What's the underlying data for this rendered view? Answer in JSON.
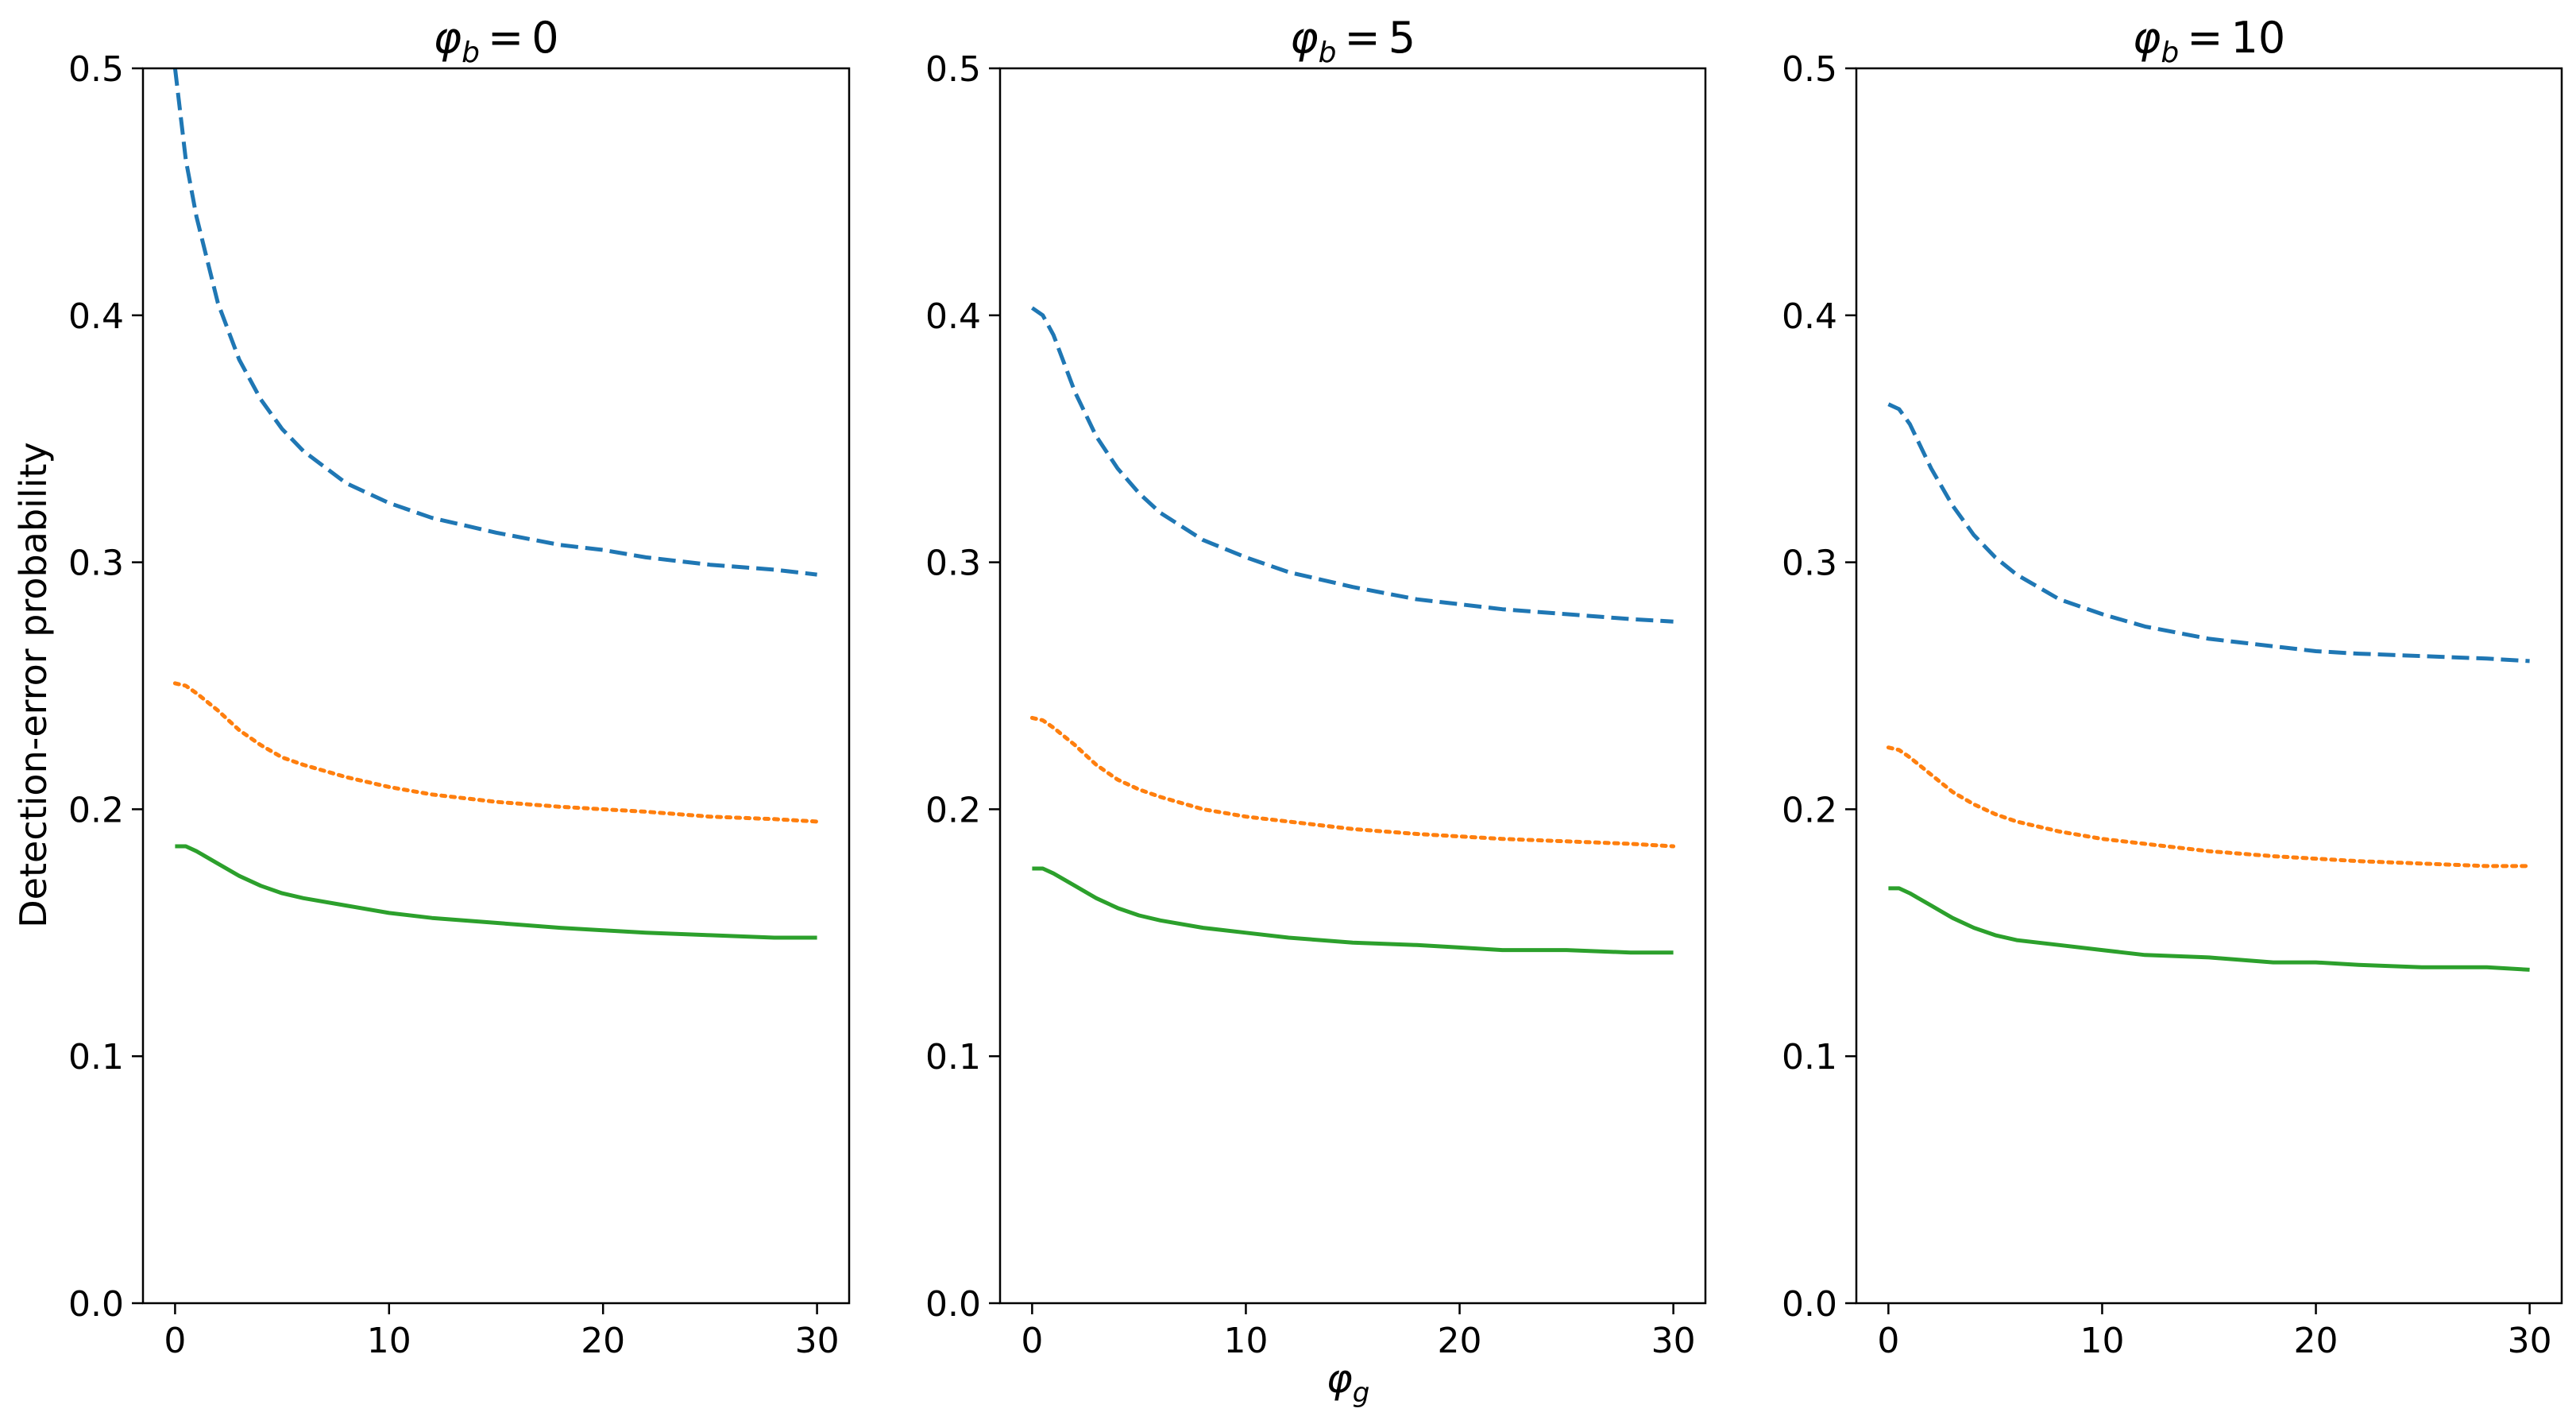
{
  "chart_data": {
    "type": "line",
    "layout": "1x3 panels, shared y range",
    "ylabel": "Detection-error probability",
    "xlabel_symbol": "φ",
    "xlabel_subscript": "g",
    "title_symbol": "φ",
    "title_subscript": "b",
    "title_equals": "=",
    "xlim": [
      -1.5,
      31.5
    ],
    "ylim": [
      0.0,
      0.5
    ],
    "xticks": [
      0,
      10,
      20,
      30
    ],
    "yticks": [
      0.0,
      0.1,
      0.2,
      0.3,
      0.4,
      0.5
    ],
    "ytick_labels": [
      "0.0",
      "0.1",
      "0.2",
      "0.3",
      "0.4",
      "0.5"
    ],
    "grid": false,
    "legend": "none",
    "x": [
      0,
      0.5,
      1,
      2,
      3,
      4,
      5,
      6,
      8,
      10,
      12,
      15,
      18,
      20,
      22,
      25,
      28,
      30
    ],
    "series_styles": [
      {
        "color": "#1f77b4",
        "linestyle": "dashed"
      },
      {
        "color": "#ff7f0e",
        "linestyle": "dotted"
      },
      {
        "color": "#2ca02c",
        "linestyle": "solid"
      }
    ],
    "panels": [
      {
        "title_value": "0",
        "series": [
          {
            "values": [
              0.5,
              0.463,
              0.44,
              0.405,
              0.382,
              0.366,
              0.354,
              0.345,
              0.332,
              0.324,
              0.318,
              0.312,
              0.307,
              0.305,
              0.302,
              0.299,
              0.297,
              0.295
            ]
          },
          {
            "values": [
              0.251,
              0.25,
              0.247,
              0.24,
              0.232,
              0.226,
              0.221,
              0.218,
              0.213,
              0.209,
              0.206,
              0.203,
              0.201,
              0.2,
              0.199,
              0.197,
              0.196,
              0.195
            ]
          },
          {
            "values": [
              0.185,
              0.185,
              0.183,
              0.178,
              0.173,
              0.169,
              0.166,
              0.164,
              0.161,
              0.158,
              0.156,
              0.154,
              0.152,
              0.151,
              0.15,
              0.149,
              0.148,
              0.148
            ]
          }
        ]
      },
      {
        "title_value": "5",
        "series": [
          {
            "values": [
              0.403,
              0.4,
              0.392,
              0.369,
              0.351,
              0.338,
              0.328,
              0.32,
              0.309,
              0.302,
              0.296,
              0.29,
              0.285,
              0.283,
              0.281,
              0.279,
              0.277,
              0.276
            ]
          },
          {
            "values": [
              0.237,
              0.236,
              0.233,
              0.226,
              0.218,
              0.212,
              0.208,
              0.205,
              0.2,
              0.197,
              0.195,
              0.192,
              0.19,
              0.189,
              0.188,
              0.187,
              0.186,
              0.185
            ]
          },
          {
            "values": [
              0.176,
              0.176,
              0.174,
              0.169,
              0.164,
              0.16,
              0.157,
              0.155,
              0.152,
              0.15,
              0.148,
              0.146,
              0.145,
              0.144,
              0.143,
              0.143,
              0.142,
              0.142
            ]
          }
        ]
      },
      {
        "title_value": "10",
        "series": [
          {
            "values": [
              0.364,
              0.362,
              0.356,
              0.338,
              0.323,
              0.311,
              0.302,
              0.295,
              0.285,
              0.279,
              0.274,
              0.269,
              0.266,
              0.264,
              0.263,
              0.262,
              0.261,
              0.26
            ]
          },
          {
            "values": [
              0.225,
              0.224,
              0.221,
              0.214,
              0.207,
              0.202,
              0.198,
              0.195,
              0.191,
              0.188,
              0.186,
              0.183,
              0.181,
              0.18,
              0.179,
              0.178,
              0.177,
              0.177
            ]
          },
          {
            "values": [
              0.168,
              0.168,
              0.166,
              0.161,
              0.156,
              0.152,
              0.149,
              0.147,
              0.145,
              0.143,
              0.141,
              0.14,
              0.138,
              0.138,
              0.137,
              0.136,
              0.136,
              0.135
            ]
          }
        ]
      }
    ]
  }
}
